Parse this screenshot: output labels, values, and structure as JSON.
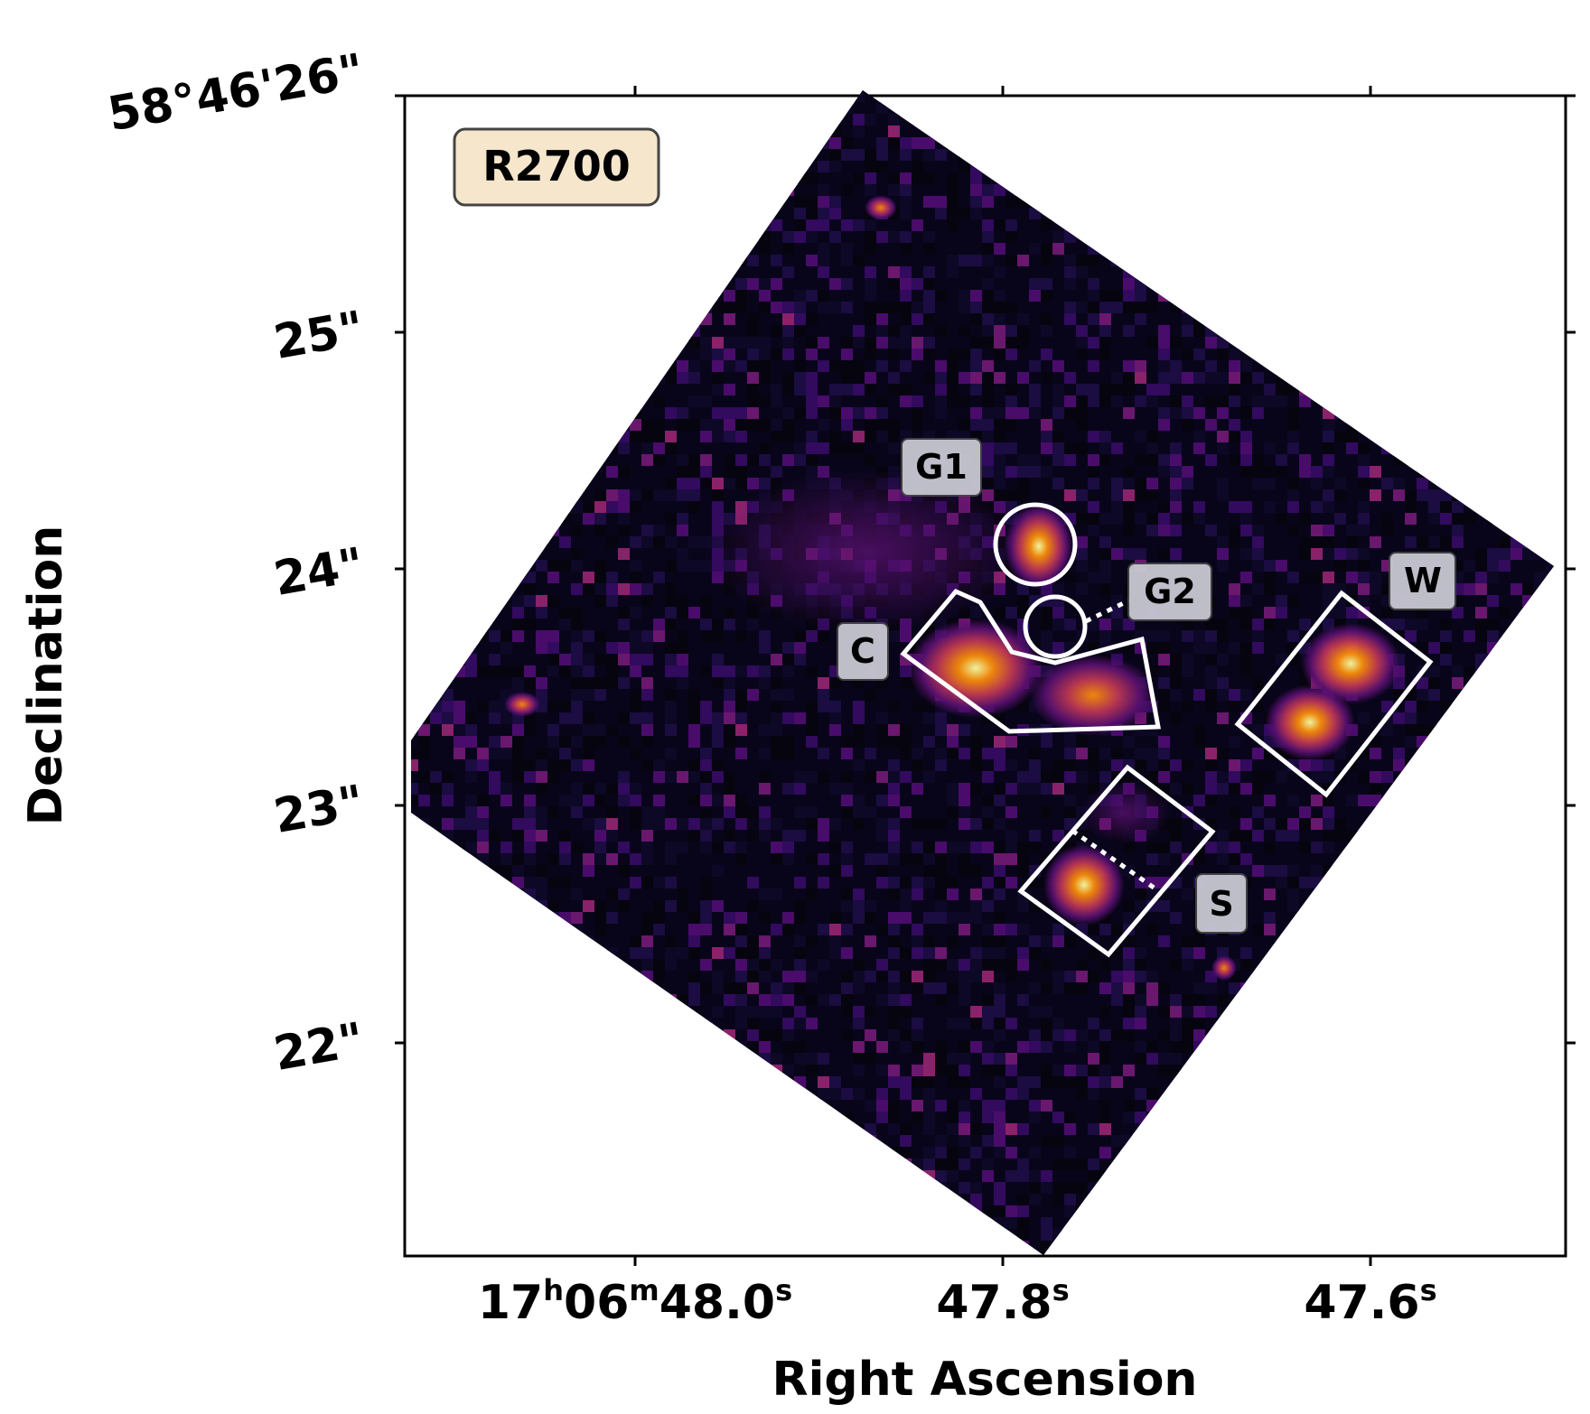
{
  "panel_label": "R2700",
  "axes": {
    "xlabel": "Right Ascension",
    "ylabel": "Declination",
    "x_ticks": [
      {
        "h": "17",
        "m": "06",
        "s": "48.0",
        "plain": null
      },
      {
        "h": null,
        "m": null,
        "s": null,
        "plain": "47.8"
      },
      {
        "h": null,
        "m": null,
        "s": null,
        "plain": "47.6"
      }
    ],
    "y_ticks": [
      "58°46'26\"",
      "25\"",
      "24\"",
      "23\"",
      "22\""
    ]
  },
  "regions": [
    {
      "label": "G1",
      "shape": "circle"
    },
    {
      "label": "G2",
      "shape": "circle"
    },
    {
      "label": "C",
      "shape": "polygon"
    },
    {
      "label": "W",
      "shape": "rectangle"
    },
    {
      "label": "S",
      "shape": "rectangle"
    }
  ],
  "colors": {
    "background_pixel": "#000004",
    "colormap": "inferno",
    "region_outline": "#ffffff",
    "panel_label_fill": "#f5e6cc",
    "region_label_fill": "#c8c8d2"
  }
}
